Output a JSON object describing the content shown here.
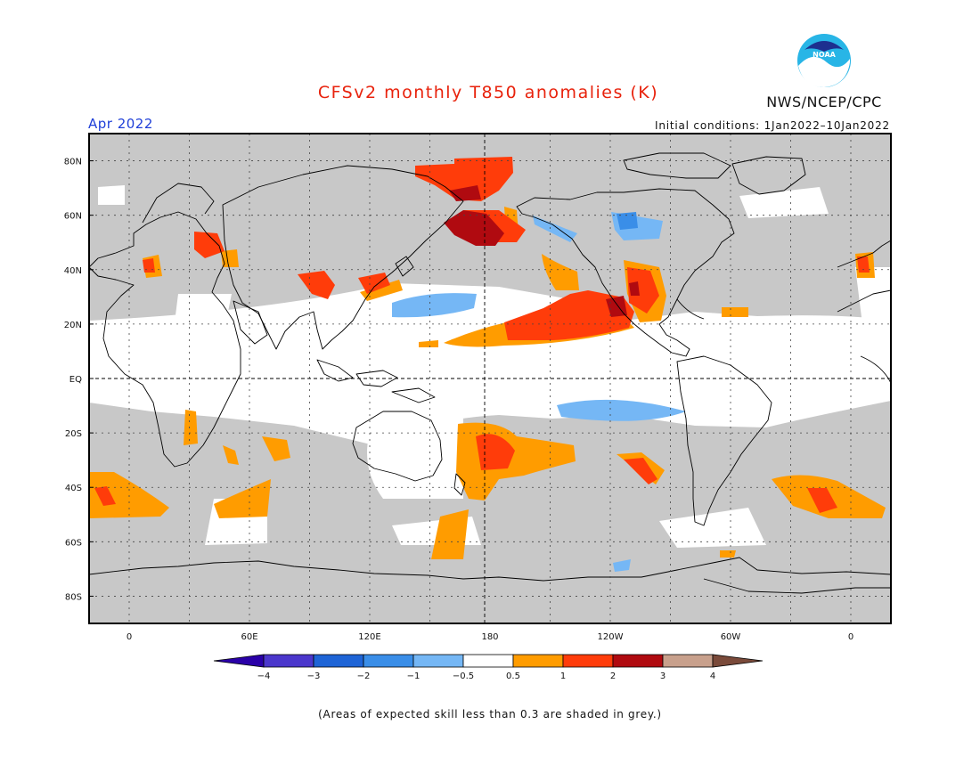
{
  "title": "CFSv2 monthly T850 anomalies (K)",
  "issuer": "NWS/NCEP/CPC",
  "logo_icon": "noaa-logo-icon",
  "logo_text": "NOAA",
  "valid_month": "Apr 2022",
  "initial_conditions": "Initial conditions: 1Jan2022–10Jan2022",
  "footnote": "(Areas of expected skill less than 0.3 are shaded in grey.)",
  "map": {
    "projection": "cylindrical-equidistant",
    "lon_ticks": [
      "0",
      "60E",
      "120E",
      "180",
      "120W",
      "60W",
      "0"
    ],
    "lat_ticks": [
      "80N",
      "60N",
      "40N",
      "20N",
      "EQ",
      "20S",
      "40S",
      "60S",
      "80S"
    ],
    "lon_range": [
      -20,
      380
    ],
    "lat_range": [
      -90,
      90
    ],
    "grid": "dotted every 30 deg lon, 20 deg lat",
    "reference_lines": [
      "equator",
      "dateline"
    ]
  },
  "colorbar": {
    "ticks": [
      "−4",
      "−3",
      "−2",
      "−1",
      "−0.5",
      "0.5",
      "1",
      "2",
      "3",
      "4"
    ],
    "colors": [
      "#2a00a8",
      "#4b37cc",
      "#1e64d6",
      "#3a8ee8",
      "#75b7f5",
      "#ffffff",
      "#ff9c00",
      "#ff3c0a",
      "#b00a10",
      "#c8a08c",
      "#7a4a3a"
    ]
  },
  "colors": {
    "low_skill_grey": "#c8c8c8",
    "neutral": "#ffffff",
    "title_red": "#e8220c",
    "month_blue": "#1f3fd8"
  }
}
